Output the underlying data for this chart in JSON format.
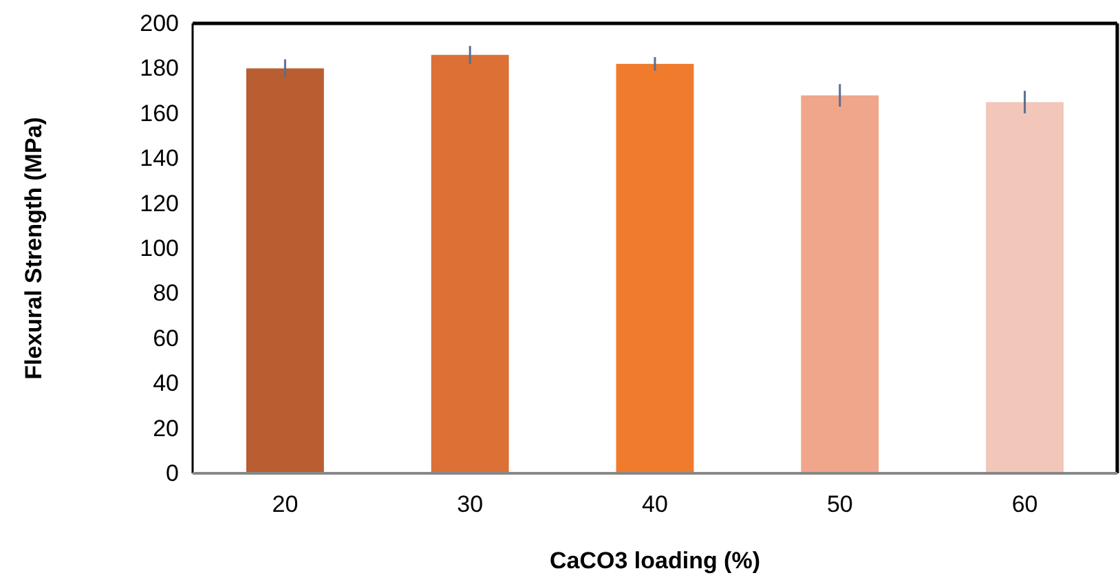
{
  "chart_data": {
    "type": "bar",
    "xlabel": "CaCO3 loading (%)",
    "ylabel": "Flexural Strength (MPa)",
    "categories": [
      "20",
      "30",
      "40",
      "50",
      "60"
    ],
    "values": [
      180,
      186,
      182,
      168,
      165
    ],
    "errors": [
      4,
      4,
      3,
      5,
      5
    ],
    "colors": [
      "#b95e30",
      "#dc7035",
      "#f07b2c",
      "#f0a68a",
      "#f2c6b8"
    ],
    "ylim": [
      0,
      200
    ],
    "yticks": [
      0,
      20,
      40,
      60,
      80,
      100,
      120,
      140,
      160,
      180,
      200
    ],
    "grid": false
  }
}
